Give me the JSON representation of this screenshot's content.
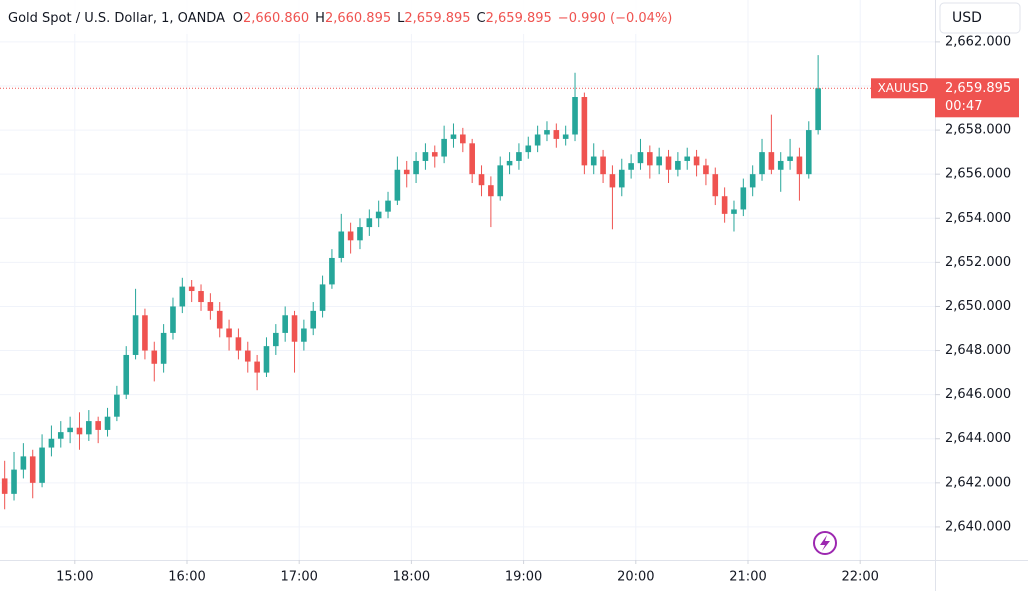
{
  "header": {
    "title": "Gold Spot / U.S. Dollar, 1, OANDA",
    "ohlc_legend": [
      {
        "key": "O",
        "value": "2,660.860"
      },
      {
        "key": "H",
        "value": "2,660.895"
      },
      {
        "key": "L",
        "value": "2,659.895"
      },
      {
        "key": "C",
        "value": "2,659.895"
      }
    ],
    "change": "−0.990 (−0.04%)"
  },
  "currency": "USD",
  "chart_data": {
    "type": "candlestick",
    "up_color": "#26a69a",
    "down_color": "#ef5350",
    "grid": true,
    "x": [
      "14:20",
      "14:25",
      "14:30",
      "14:35",
      "14:40",
      "14:45",
      "14:50",
      "14:55",
      "15:00",
      "15:05",
      "15:10",
      "15:15",
      "15:20",
      "15:25",
      "15:30",
      "15:35",
      "15:40",
      "15:45",
      "15:50",
      "15:55",
      "16:00",
      "16:05",
      "16:10",
      "16:15",
      "16:20",
      "16:25",
      "16:30",
      "16:35",
      "16:40",
      "16:45",
      "16:50",
      "16:55",
      "17:00",
      "17:05",
      "17:10",
      "17:15",
      "17:20",
      "17:25",
      "17:30",
      "17:35",
      "17:40",
      "17:45",
      "17:50",
      "17:55",
      "18:00",
      "18:05",
      "18:10",
      "18:15",
      "18:20",
      "18:25",
      "18:30",
      "18:35",
      "18:40",
      "18:45",
      "18:50",
      "18:55",
      "19:00",
      "19:05",
      "19:10",
      "19:15",
      "19:20",
      "19:25",
      "19:30",
      "19:35",
      "19:40",
      "19:45",
      "19:50",
      "19:55",
      "20:00",
      "20:05",
      "20:10",
      "20:15",
      "20:20",
      "20:25",
      "20:30",
      "20:35",
      "20:40",
      "20:45",
      "20:50",
      "20:55",
      "21:00",
      "21:05",
      "21:10",
      "21:15",
      "21:20",
      "21:25",
      "21:30",
      "21:35"
    ],
    "ohlc": [
      [
        2642.2,
        2643.0,
        2640.8,
        2641.5
      ],
      [
        2641.5,
        2643.4,
        2641.2,
        2642.6
      ],
      [
        2642.6,
        2643.8,
        2642.2,
        2643.2
      ],
      [
        2643.2,
        2643.5,
        2641.3,
        2642.0
      ],
      [
        2642.0,
        2644.2,
        2641.8,
        2643.6
      ],
      [
        2643.6,
        2644.6,
        2643.2,
        2644.0
      ],
      [
        2644.0,
        2644.8,
        2643.6,
        2644.3
      ],
      [
        2644.3,
        2645.0,
        2643.8,
        2644.5
      ],
      [
        2644.5,
        2645.2,
        2643.5,
        2644.2
      ],
      [
        2644.2,
        2645.3,
        2643.9,
        2644.8
      ],
      [
        2644.8,
        2645.0,
        2643.8,
        2644.4
      ],
      [
        2644.4,
        2645.4,
        2644.1,
        2645.0
      ],
      [
        2645.0,
        2646.4,
        2644.8,
        2646.0
      ],
      [
        2646.0,
        2648.2,
        2645.8,
        2647.8
      ],
      [
        2647.8,
        2650.8,
        2647.6,
        2649.6
      ],
      [
        2649.6,
        2649.9,
        2647.6,
        2648.0
      ],
      [
        2648.0,
        2648.4,
        2646.6,
        2647.4
      ],
      [
        2647.4,
        2649.2,
        2647.0,
        2648.8
      ],
      [
        2648.8,
        2650.4,
        2648.5,
        2650.0
      ],
      [
        2650.0,
        2651.3,
        2649.7,
        2650.9
      ],
      [
        2650.9,
        2651.2,
        2650.2,
        2650.7
      ],
      [
        2650.7,
        2651.0,
        2649.8,
        2650.2
      ],
      [
        2650.2,
        2650.6,
        2649.4,
        2649.8
      ],
      [
        2649.8,
        2650.2,
        2648.6,
        2649.0
      ],
      [
        2649.0,
        2649.4,
        2648.0,
        2648.6
      ],
      [
        2648.6,
        2649.0,
        2647.6,
        2648.0
      ],
      [
        2648.0,
        2648.4,
        2647.0,
        2647.5
      ],
      [
        2647.5,
        2647.8,
        2646.2,
        2647.0
      ],
      [
        2647.0,
        2648.6,
        2646.8,
        2648.2
      ],
      [
        2648.2,
        2649.2,
        2647.8,
        2648.8
      ],
      [
        2648.8,
        2650.0,
        2648.4,
        2649.6
      ],
      [
        2649.6,
        2649.8,
        2647.0,
        2648.4
      ],
      [
        2648.4,
        2649.4,
        2648.0,
        2649.0
      ],
      [
        2649.0,
        2650.2,
        2648.7,
        2649.8
      ],
      [
        2649.8,
        2651.4,
        2649.5,
        2651.0
      ],
      [
        2651.0,
        2652.6,
        2650.8,
        2652.2
      ],
      [
        2652.2,
        2654.2,
        2652.0,
        2653.4
      ],
      [
        2653.4,
        2653.8,
        2652.4,
        2653.0
      ],
      [
        2653.0,
        2654.0,
        2652.6,
        2653.6
      ],
      [
        2653.6,
        2654.4,
        2653.2,
        2654.0
      ],
      [
        2654.0,
        2654.8,
        2653.6,
        2654.3
      ],
      [
        2654.3,
        2655.2,
        2654.0,
        2654.8
      ],
      [
        2654.8,
        2656.8,
        2654.6,
        2656.2
      ],
      [
        2656.2,
        2656.6,
        2655.4,
        2656.0
      ],
      [
        2656.0,
        2657.0,
        2655.6,
        2656.6
      ],
      [
        2656.6,
        2657.4,
        2656.2,
        2657.0
      ],
      [
        2657.0,
        2657.3,
        2656.3,
        2656.8
      ],
      [
        2656.8,
        2658.2,
        2656.5,
        2657.6
      ],
      [
        2657.6,
        2658.3,
        2657.2,
        2657.8
      ],
      [
        2657.8,
        2658.1,
        2657.0,
        2657.4
      ],
      [
        2657.4,
        2657.6,
        2655.6,
        2656.0
      ],
      [
        2656.0,
        2656.4,
        2655.0,
        2655.5
      ],
      [
        2655.5,
        2655.9,
        2653.6,
        2655.0
      ],
      [
        2655.0,
        2656.8,
        2654.8,
        2656.4
      ],
      [
        2656.4,
        2657.0,
        2656.0,
        2656.6
      ],
      [
        2656.6,
        2657.4,
        2656.2,
        2657.0
      ],
      [
        2657.0,
        2657.7,
        2656.7,
        2657.3
      ],
      [
        2657.3,
        2658.2,
        2657.0,
        2657.8
      ],
      [
        2657.8,
        2658.4,
        2657.5,
        2658.0
      ],
      [
        2658.0,
        2658.3,
        2657.2,
        2657.6
      ],
      [
        2657.6,
        2658.2,
        2657.3,
        2657.8
      ],
      [
        2657.8,
        2660.6,
        2657.5,
        2659.5
      ],
      [
        2659.5,
        2659.7,
        2656.0,
        2656.4
      ],
      [
        2656.4,
        2657.4,
        2656.0,
        2656.8
      ],
      [
        2656.8,
        2657.1,
        2655.6,
        2656.0
      ],
      [
        2656.0,
        2656.4,
        2653.5,
        2655.4
      ],
      [
        2655.4,
        2656.7,
        2655.0,
        2656.2
      ],
      [
        2656.2,
        2656.9,
        2655.8,
        2656.5
      ],
      [
        2656.5,
        2657.6,
        2656.2,
        2657.0
      ],
      [
        2657.0,
        2657.3,
        2655.8,
        2656.4
      ],
      [
        2656.4,
        2657.2,
        2656.0,
        2656.8
      ],
      [
        2656.8,
        2657.1,
        2655.6,
        2656.2
      ],
      [
        2656.2,
        2657.0,
        2655.9,
        2656.6
      ],
      [
        2656.6,
        2657.2,
        2656.2,
        2656.8
      ],
      [
        2656.8,
        2657.1,
        2655.9,
        2656.4
      ],
      [
        2656.4,
        2656.7,
        2655.5,
        2656.0
      ],
      [
        2656.0,
        2656.3,
        2654.6,
        2655.0
      ],
      [
        2655.0,
        2655.4,
        2653.8,
        2654.2
      ],
      [
        2654.2,
        2654.8,
        2653.4,
        2654.4
      ],
      [
        2654.4,
        2655.8,
        2654.1,
        2655.4
      ],
      [
        2655.4,
        2656.4,
        2655.0,
        2656.0
      ],
      [
        2656.0,
        2657.6,
        2655.7,
        2657.0
      ],
      [
        2657.0,
        2658.7,
        2656.0,
        2656.2
      ],
      [
        2656.2,
        2657.0,
        2655.2,
        2656.6
      ],
      [
        2656.6,
        2657.6,
        2656.2,
        2656.8
      ],
      [
        2656.8,
        2657.2,
        2654.8,
        2656.0
      ],
      [
        2656.0,
        2658.4,
        2655.8,
        2658.0
      ],
      [
        2658.0,
        2661.4,
        2657.8,
        2659.895
      ]
    ],
    "xlim": [
      "14:20",
      "22:40"
    ],
    "xticks": [
      "15:00",
      "16:00",
      "17:00",
      "18:00",
      "19:00",
      "20:00",
      "21:00",
      "22:00"
    ],
    "ylim": [
      2638.5,
      2663.9
    ],
    "yticks": [
      {
        "value": 2640,
        "label": "2,640.000"
      },
      {
        "value": 2642,
        "label": "2,642.000"
      },
      {
        "value": 2644,
        "label": "2,644.000"
      },
      {
        "value": 2646,
        "label": "2,646.000"
      },
      {
        "value": 2648,
        "label": "2,648.000"
      },
      {
        "value": 2650,
        "label": "2,650.000"
      },
      {
        "value": 2652,
        "label": "2,652.000"
      },
      {
        "value": 2654,
        "label": "2,654.000"
      },
      {
        "value": 2656,
        "label": "2,656.000"
      },
      {
        "value": 2658,
        "label": "2,658.000"
      },
      {
        "value": 2660,
        "label": "2,660.000"
      },
      {
        "value": 2662,
        "label": "2,662.000"
      }
    ],
    "last_price": {
      "symbol": "XAUUSD",
      "value": 2659.895,
      "label": "2,659.895",
      "countdown": "00:47",
      "color": "#ef5350"
    }
  }
}
